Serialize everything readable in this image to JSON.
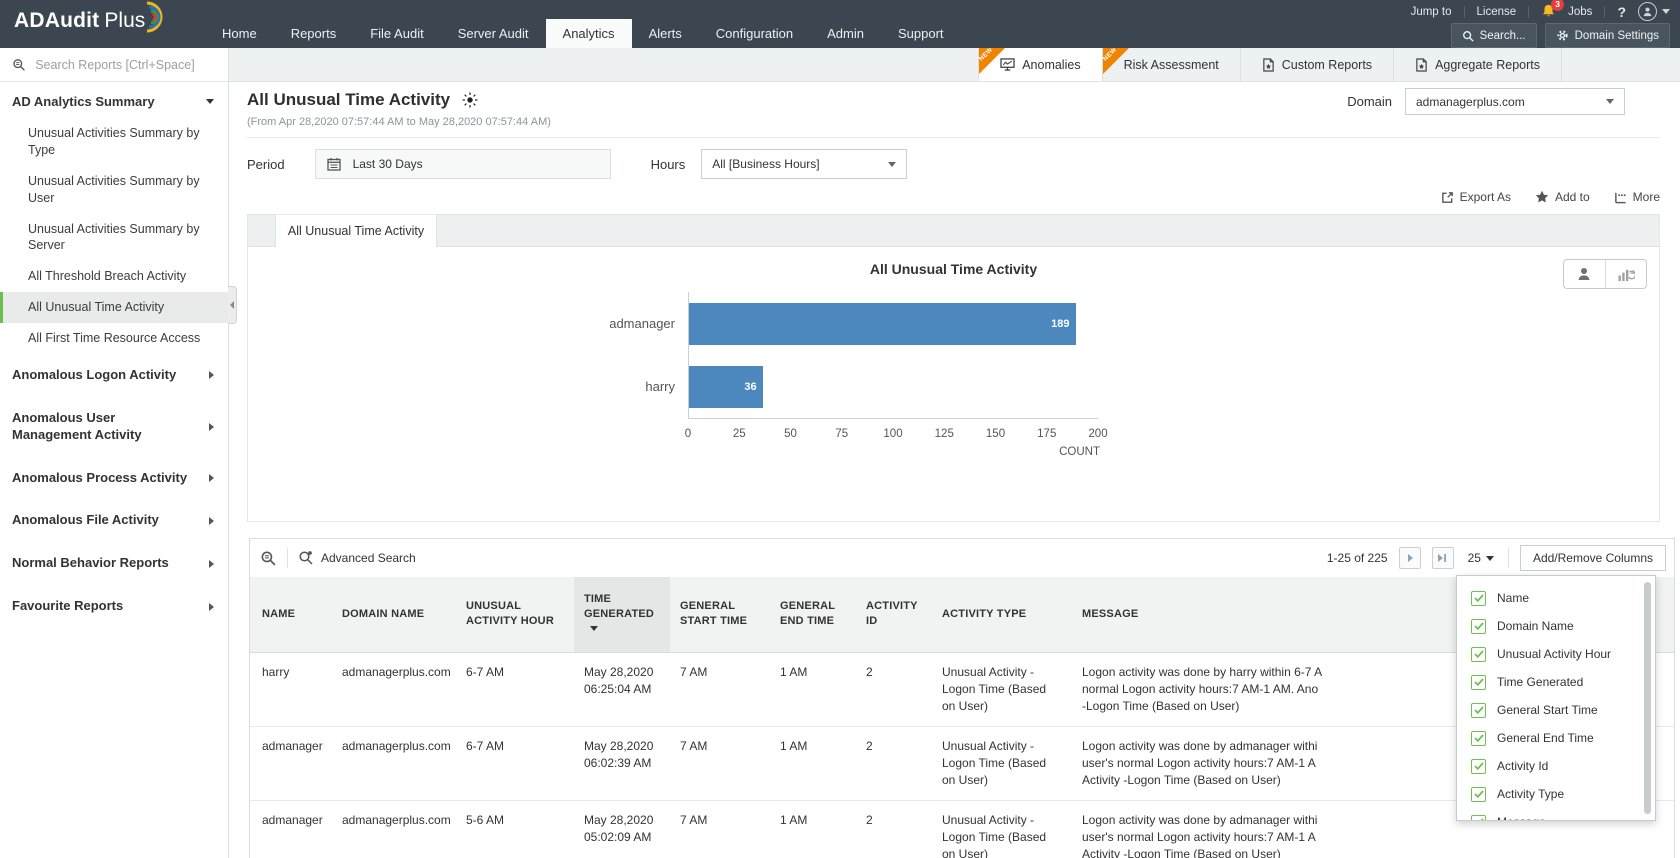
{
  "brand": {
    "part1": "ADAudit",
    "part2": "Plus"
  },
  "topnav": {
    "items": [
      "Home",
      "Reports",
      "File Audit",
      "Server Audit",
      "Analytics",
      "Alerts",
      "Configuration",
      "Admin",
      "Support"
    ],
    "utility": {
      "jump_to": "Jump to",
      "license": "License",
      "bell_count": "3",
      "jobs": "Jobs",
      "help": "?"
    },
    "search_label": "Search...",
    "domain_settings_label": "Domain Settings"
  },
  "tabs": {
    "new_label": "NEW",
    "items": [
      {
        "label": "Anomalies"
      },
      {
        "label": "Risk Assessment"
      },
      {
        "label": "Custom Reports"
      },
      {
        "label": "Aggregate Reports"
      }
    ]
  },
  "sidebar": {
    "search_placeholder": "Search Reports [Ctrl+Space]",
    "group_label": "AD Analytics Summary",
    "group_items": [
      "Unusual Activities Summary by Type",
      "Unusual Activities Summary by User",
      "Unusual Activities Summary by Server",
      "All Threshold Breach Activity",
      "All Unusual Time Activity",
      "All First Time Resource Access"
    ],
    "selected_item": "All Unusual Time Activity",
    "categories": [
      "Anomalous Logon Activity",
      "Anomalous User Management Activity",
      "Anomalous Process Activity",
      "Anomalous File Activity",
      "Normal Behavior Reports",
      "Favourite Reports"
    ]
  },
  "page": {
    "title": "All Unusual Time Activity",
    "date_range": "(From Apr 28,2020 07:57:44 AM to May 28,2020 07:57:44 AM)",
    "domain_label": "Domain",
    "domain_value": "admanagerplus.com",
    "period_label": "Period",
    "period_value": "Last 30 Days",
    "hours_label": "Hours",
    "hours_value": "All [Business Hours]",
    "export_label": "Export As",
    "add_to_label": "Add to",
    "more_label": "More",
    "report_tab": "All Unusual Time Activity"
  },
  "chart_data": {
    "type": "bar",
    "orientation": "horizontal",
    "title": "All Unusual Time Activity",
    "categories": [
      "admanager",
      "harry"
    ],
    "values": [
      189,
      36
    ],
    "xlabel": "COUNT",
    "xlim": [
      0,
      200
    ],
    "xticks": [
      0,
      25,
      50,
      75,
      100,
      125,
      150,
      175,
      200
    ],
    "bar_color": "#4c87be",
    "grid": false,
    "legend": false
  },
  "table": {
    "advanced_search_label": "Advanced Search",
    "pagination": {
      "range": "1-25 of 225",
      "page_size": "25"
    },
    "add_remove_columns_label": "Add/Remove Columns",
    "columns": [
      "NAME",
      "DOMAIN NAME",
      "UNUSUAL ACTIVITY HOUR",
      "TIME GENERATED",
      "GENERAL START TIME",
      "GENERAL END TIME",
      "ACTIVITY ID",
      "ACTIVITY TYPE",
      "MESSAGE"
    ],
    "sorted_column": "TIME GENERATED",
    "rows": [
      {
        "name": "harry",
        "domain": "admanagerplus.com",
        "hour": "6-7 AM",
        "time": "May 28,2020 06:25:04 AM",
        "start": "7 AM",
        "end": "1 AM",
        "id": "2",
        "type": "Unusual Activity -Logon Time (Based on User)",
        "message_lines": [
          "Logon activity was done by harry within 6-7 A",
          "normal Logon activity hours:7 AM-1 AM. Ano",
          "-Logon Time (Based on User)"
        ]
      },
      {
        "name": "admanager",
        "domain": "admanagerplus.com",
        "hour": "6-7 AM",
        "time": "May 28,2020 06:02:39 AM",
        "start": "7 AM",
        "end": "1 AM",
        "id": "2",
        "type": "Unusual Activity -Logon Time (Based on User)",
        "message_lines": [
          "Logon activity was done by admanager withi",
          "user's normal Logon activity hours:7 AM-1 A",
          "Activity -Logon Time (Based on User)"
        ]
      },
      {
        "name": "admanager",
        "domain": "admanagerplus.com",
        "hour": "5-6 AM",
        "time": "May 28,2020 05:02:09 AM",
        "start": "7 AM",
        "end": "1 AM",
        "id": "2",
        "type": "Unusual Activity -Logon Time (Based on User)",
        "message_lines": [
          "Logon activity was done by admanager withi",
          "user's normal Logon activity hours:7 AM-1 A",
          "Activity -Logon Time (Based on User)"
        ]
      }
    ]
  },
  "columns_dropdown": {
    "items": [
      "Name",
      "Domain Name",
      "Unusual Activity Hour",
      "Time Generated",
      "General Start Time",
      "General End Time",
      "Activity Id",
      "Activity Type",
      "Message"
    ],
    "all_checked": true
  },
  "colors": {
    "nav_dark": "#3c4650",
    "accent_orange": "#f08300",
    "bar_blue": "#4c87be",
    "check_green": "#6fbf54",
    "bell_yellow": "#f6b91e",
    "badge_red": "#e23e3e",
    "selected_green": "#6cbf4e"
  }
}
